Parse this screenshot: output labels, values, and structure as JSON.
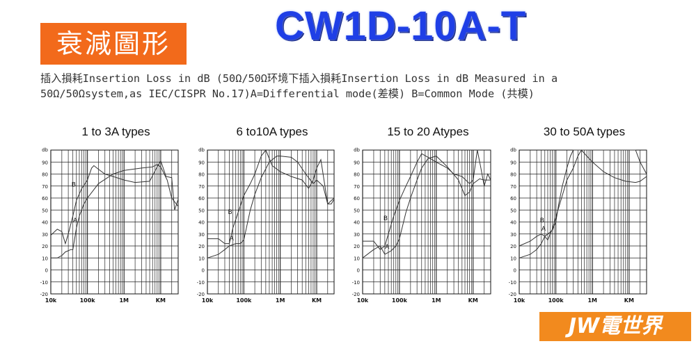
{
  "header": {
    "badge_text": "衰減圖形",
    "model": "CW1D-10A-T",
    "line1": "插入損耗Insertion Loss in dB (50Ω/50Ω环境下插入損耗Insertion Loss in dB Measured in a",
    "line2": "50Ω/50Ωsystem,as IEC/CISPR No.17)A=Differential mode(差模) B=Common Mode (共模)"
  },
  "footer": {
    "logo_text": "JW電世界"
  },
  "colors": {
    "badge": "#f26a1b",
    "model": "#1f3fe6",
    "footer": "#f28a1e",
    "grid": "#000000"
  },
  "chart_data": [
    {
      "type": "line",
      "title": "1 to 3A types",
      "ylabel": "db",
      "ylim": [
        -20,
        100
      ],
      "yticks": [
        -20,
        -10,
        0,
        10,
        20,
        30,
        40,
        50,
        60,
        70,
        80,
        90
      ],
      "xscale": "log",
      "xlim": [
        10000,
        30000000
      ],
      "xtick_labels": [
        {
          "x": 10000,
          "label": "10k"
        },
        {
          "x": 100000,
          "label": "100k"
        },
        {
          "x": 1000000,
          "label": "1M"
        },
        {
          "x": 10000000,
          "label": "KM"
        }
      ],
      "series": [
        {
          "name": "A",
          "x": [
            10000,
            15000,
            20000,
            25000,
            30000,
            35000,
            40000,
            50000,
            60000,
            80000,
            100000,
            200000,
            500000,
            1000000,
            3000000,
            6000000,
            8000000,
            10000000,
            15000000,
            20000000,
            30000000
          ],
          "y": [
            10,
            10,
            12,
            15,
            16,
            17,
            17,
            35,
            45,
            55,
            60,
            72,
            80,
            83,
            85,
            86,
            88,
            86,
            75,
            60,
            53
          ]
        },
        {
          "name": "B",
          "x": [
            10000,
            15000,
            20000,
            25000,
            30000,
            40000,
            50000,
            70000,
            100000,
            130000,
            150000,
            200000,
            300000,
            500000,
            1000000,
            2000000,
            5000000,
            8000000,
            10000000,
            14000000,
            20000000,
            24000000,
            30000000
          ],
          "y": [
            29,
            34,
            32,
            22,
            30,
            45,
            58,
            68,
            75,
            85,
            87,
            84,
            80,
            78,
            75,
            73,
            74,
            86,
            91,
            78,
            77,
            50,
            59
          ]
        }
      ]
    },
    {
      "type": "line",
      "title": "6 to10A types",
      "ylabel": "db",
      "ylim": [
        -20,
        100
      ],
      "yticks": [
        -20,
        -10,
        0,
        10,
        20,
        30,
        40,
        50,
        60,
        70,
        80,
        90
      ],
      "xscale": "log",
      "xlim": [
        10000,
        30000000
      ],
      "xtick_labels": [
        {
          "x": 10000,
          "label": "10k"
        },
        {
          "x": 100000,
          "label": "100k"
        },
        {
          "x": 1000000,
          "label": "1M"
        },
        {
          "x": 10000000,
          "label": "KM"
        }
      ],
      "series": [
        {
          "name": "A",
          "x": [
            10000,
            20000,
            30000,
            40000,
            60000,
            80000,
            100000,
            150000,
            200000,
            300000,
            500000,
            800000,
            1000000,
            2000000,
            3000000,
            5000000,
            8000000,
            10000000,
            15000000,
            20000000,
            25000000,
            30000000
          ],
          "y": [
            10,
            13,
            17,
            20,
            22,
            22,
            25,
            50,
            63,
            77,
            90,
            95,
            95,
            94,
            90,
            80,
            72,
            75,
            70,
            55,
            55,
            59
          ]
        },
        {
          "name": "B",
          "x": [
            10000,
            20000,
            30000,
            40000,
            50000,
            70000,
            100000,
            150000,
            200000,
            300000,
            400000,
            600000,
            1000000,
            2000000,
            4000000,
            6000000,
            8000000,
            10000000,
            13000000,
            15000000,
            20000000,
            30000000
          ],
          "y": [
            26,
            26,
            22,
            22,
            35,
            48,
            62,
            72,
            80,
            95,
            100,
            87,
            82,
            78,
            75,
            68,
            75,
            85,
            92,
            80,
            55,
            60
          ]
        }
      ]
    },
    {
      "type": "line",
      "title": "15 to 20 Atypes",
      "ylabel": "db",
      "ylim": [
        -20,
        100
      ],
      "yticks": [
        -20,
        -10,
        0,
        10,
        20,
        30,
        40,
        50,
        60,
        70,
        80,
        90
      ],
      "xscale": "log",
      "xlim": [
        10000,
        30000000
      ],
      "xtick_labels": [
        {
          "x": 10000,
          "label": "10k"
        },
        {
          "x": 100000,
          "label": "100k"
        },
        {
          "x": 1000000,
          "label": "1M"
        },
        {
          "x": 10000000,
          "label": "KM"
        }
      ],
      "series": [
        {
          "name": "A",
          "x": [
            10000,
            20000,
            30000,
            40000,
            60000,
            80000,
            100000,
            150000,
            200000,
            300000,
            400000,
            600000,
            1000000,
            2000000,
            4000000,
            6000000,
            8000000,
            10000000,
            15000000,
            20000000,
            30000000
          ],
          "y": [
            10,
            17,
            20,
            13,
            16,
            20,
            26,
            48,
            60,
            75,
            85,
            93,
            95,
            86,
            75,
            62,
            65,
            72,
            76,
            75,
            75
          ]
        },
        {
          "name": "B",
          "x": [
            10000,
            20000,
            30000,
            40000,
            50000,
            70000,
            100000,
            150000,
            200000,
            300000,
            400000,
            600000,
            1000000,
            2000000,
            3000000,
            5000000,
            8000000,
            10000000,
            13000000,
            16000000,
            20000000,
            25000000,
            30000000
          ],
          "y": [
            24,
            24,
            17,
            20,
            30,
            45,
            58,
            70,
            78,
            90,
            97,
            94,
            90,
            85,
            80,
            78,
            72,
            75,
            100,
            86,
            70,
            80,
            75
          ]
        }
      ]
    },
    {
      "type": "line",
      "title": "30 to 50A types",
      "ylabel": "db",
      "ylim": [
        -20,
        100
      ],
      "yticks": [
        -20,
        -10,
        0,
        10,
        20,
        30,
        40,
        50,
        60,
        70,
        80,
        90
      ],
      "xscale": "log",
      "xlim": [
        10000,
        30000000
      ],
      "xtick_labels": [
        {
          "x": 10000,
          "label": "10k"
        },
        {
          "x": 100000,
          "label": "100k"
        },
        {
          "x": 1000000,
          "label": "1M"
        },
        {
          "x": 10000000,
          "label": "KM"
        }
      ],
      "series": [
        {
          "name": "A",
          "x": [
            10000,
            20000,
            30000,
            40000,
            50000,
            60000,
            80000,
            100000,
            120000,
            150000,
            200000,
            250000,
            300000,
            400000,
            700000,
            1000000,
            2000000,
            4000000,
            6000000,
            10000000,
            15000000,
            20000000,
            30000000
          ],
          "y": [
            10,
            13,
            17,
            22,
            28,
            30,
            33,
            40,
            55,
            70,
            85,
            95,
            100,
            100,
            100,
            100,
            100,
            100,
            100,
            100,
            100,
            90,
            80
          ]
        },
        {
          "name": "B",
          "x": [
            10000,
            20000,
            30000,
            40000,
            50000,
            60000,
            70000,
            80000,
            100000,
            150000,
            200000,
            300000,
            400000,
            500000,
            700000,
            1000000,
            2000000,
            4000000,
            8000000,
            15000000,
            20000000,
            30000000
          ],
          "y": [
            20,
            24,
            28,
            30,
            28,
            25,
            30,
            34,
            44,
            62,
            75,
            85,
            95,
            100,
            95,
            90,
            82,
            77,
            74,
            73,
            74,
            78
          ]
        }
      ]
    }
  ]
}
